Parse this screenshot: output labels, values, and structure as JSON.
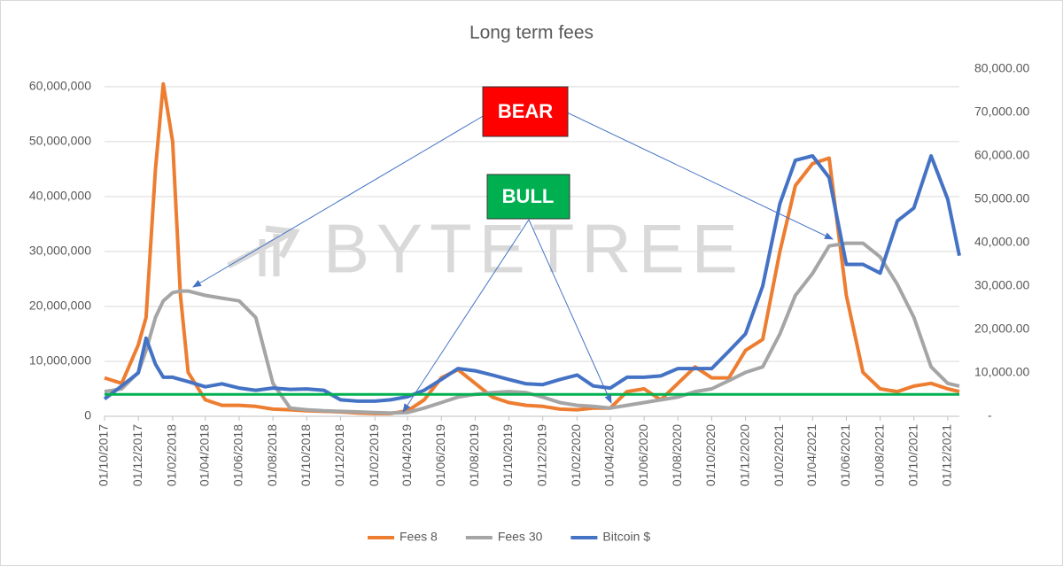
{
  "chart_data": {
    "type": "line",
    "title": "Long term fees",
    "watermark": "BYTETREE",
    "annotations": [
      "BEAR",
      "BULL"
    ],
    "x": [
      "01/10/2017",
      "01/11/2017",
      "01/12/2017",
      "15/12/2017",
      "01/01/2018",
      "15/01/2018",
      "01/02/2018",
      "15/02/2018",
      "01/03/2018",
      "01/04/2018",
      "01/05/2018",
      "01/06/2018",
      "01/07/2018",
      "01/08/2018",
      "01/09/2018",
      "01/10/2018",
      "01/11/2018",
      "01/12/2018",
      "01/01/2019",
      "01/02/2019",
      "01/03/2019",
      "01/04/2019",
      "01/05/2019",
      "01/06/2019",
      "01/07/2019",
      "01/08/2019",
      "01/09/2019",
      "01/10/2019",
      "01/11/2019",
      "01/12/2019",
      "01/01/2020",
      "01/02/2020",
      "01/03/2020",
      "01/04/2020",
      "01/05/2020",
      "01/06/2020",
      "01/07/2020",
      "01/08/2020",
      "01/09/2020",
      "01/10/2020",
      "01/11/2020",
      "01/12/2020",
      "01/01/2021",
      "01/02/2021",
      "01/03/2021",
      "01/04/2021",
      "01/05/2021",
      "01/06/2021",
      "01/07/2021",
      "01/08/2021",
      "01/09/2021",
      "01/10/2021",
      "01/11/2021",
      "01/12/2021",
      "22/12/2021"
    ],
    "xlim": [
      "01/10/2017",
      "22/12/2021"
    ],
    "xticks": [
      "01/10/2017",
      "01/12/2017",
      "01/02/2018",
      "01/04/2018",
      "01/06/2018",
      "01/08/2018",
      "01/10/2018",
      "01/12/2018",
      "01/02/2019",
      "01/04/2019",
      "01/06/2019",
      "01/08/2019",
      "01/10/2019",
      "01/12/2019",
      "01/02/2020",
      "01/04/2020",
      "01/06/2020",
      "01/08/2020",
      "01/10/2020",
      "01/12/2020",
      "01/02/2021",
      "01/04/2021",
      "01/06/2021",
      "01/08/2021",
      "01/10/2021",
      "01/12/2021"
    ],
    "ylim": [
      0,
      63200000
    ],
    "yticks": [
      0,
      {
        "value": 10000000,
        "label": "10,000,000"
      },
      {
        "value": 20000000,
        "label": "20,000,000"
      },
      {
        "value": 30000000,
        "label": "30,000,000"
      },
      {
        "value": 40000000,
        "label": "40,000,000"
      },
      {
        "value": 50000000,
        "label": "50,000,000"
      },
      {
        "value": 60000000,
        "label": "60,000,000"
      }
    ],
    "y2lim": [
      0,
      80000
    ],
    "y2ticks": [
      {
        "value": 0,
        "label": "-"
      },
      {
        "value": 10000,
        "label": "10,000.00"
      },
      {
        "value": 20000,
        "label": "20,000.00"
      },
      {
        "value": 30000,
        "label": "30,000.00"
      },
      {
        "value": 40000,
        "label": "40,000.00"
      },
      {
        "value": 50000,
        "label": "50,000.00"
      },
      {
        "value": 60000,
        "label": "60,000.00"
      },
      {
        "value": 70000,
        "label": "70,000.00"
      },
      {
        "value": 80000,
        "label": "80,000.00"
      }
    ],
    "grid": true,
    "legend": "bottom",
    "reference_line": {
      "value": 4000000,
      "color": "#00b050"
    },
    "series": [
      {
        "name": "Fees 8",
        "color": "#ed7d31",
        "values": [
          7000000,
          6000000,
          13000000,
          18000000,
          45000000,
          60500000,
          50000000,
          22000000,
          8000000,
          3000000,
          2000000,
          2000000,
          1800000,
          1300000,
          1200000,
          1000000,
          900000,
          800000,
          600000,
          500000,
          500000,
          1000000,
          3000000,
          7000000,
          8500000,
          6000000,
          3500000,
          2500000,
          2000000,
          1800000,
          1300000,
          1200000,
          1500000,
          1500000,
          4500000,
          5000000,
          3000000,
          6000000,
          9000000,
          7000000,
          7000000,
          12000000,
          14000000,
          30000000,
          42000000,
          46000000,
          47000000,
          22000000,
          8000000,
          5000000,
          4500000,
          5500000,
          6000000,
          5000000,
          4500000
        ]
      },
      {
        "name": "Fees 30",
        "color": "#a5a5a5",
        "values": [
          4500000,
          5000000,
          8000000,
          12000000,
          18000000,
          21000000,
          22500000,
          22800000,
          22800000,
          22000000,
          21500000,
          21000000,
          18000000,
          6000000,
          1500000,
          1200000,
          1000000,
          900000,
          800000,
          700000,
          600000,
          700000,
          1500000,
          2500000,
          3500000,
          4000000,
          4300000,
          4500000,
          4300000,
          3500000,
          2500000,
          2000000,
          1800000,
          1500000,
          2000000,
          2500000,
          3000000,
          3500000,
          4500000,
          5000000,
          6500000,
          8000000,
          9000000,
          15000000,
          22000000,
          26000000,
          31000000,
          31500000,
          31500000,
          29000000,
          24000000,
          18000000,
          9000000,
          6000000,
          5500000
        ]
      },
      {
        "name": "Bitcoin $",
        "color": "#4472c4",
        "axis": "y2",
        "values": [
          4000,
          7000,
          10000,
          18000,
          12000,
          9000,
          9000,
          8500,
          8000,
          6800,
          7500,
          6500,
          6000,
          6500,
          6200,
          6300,
          6000,
          3800,
          3500,
          3500,
          3800,
          4500,
          6000,
          8500,
          11000,
          10500,
          9500,
          8500,
          7500,
          7300,
          8500,
          9500,
          7000,
          6500,
          9000,
          9000,
          9300,
          11000,
          11000,
          11000,
          15000,
          19000,
          30000,
          49000,
          59000,
          60000,
          55000,
          35000,
          35000,
          33000,
          45000,
          48000,
          60000,
          50000,
          37000
        ]
      }
    ]
  }
}
